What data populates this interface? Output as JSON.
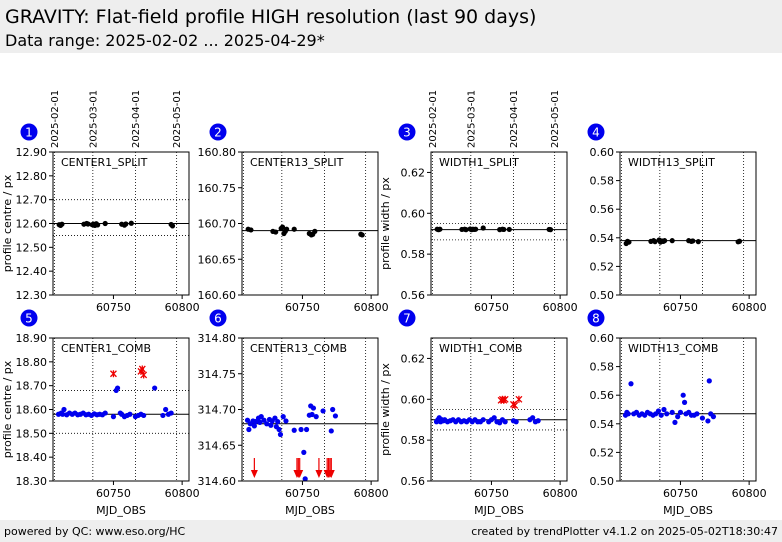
{
  "header": {
    "title": "GRAVITY: Flat-field profile HIGH resolution (last 90 days)",
    "subtitle": "Data range: 2025-02-02 ... 2025-04-29*"
  },
  "footer": {
    "left": "powered by QC: www.eso.org/HC",
    "right": "created by trendPlotter v4.1.2 on 2025-05-02T18:30:47"
  },
  "colors": {
    "normal": "#0000ee",
    "outlier": "#ee0000",
    "refline": "#000000",
    "background": "#eeeeee",
    "badge": "#0000ee"
  },
  "date_axis": {
    "labels": [
      "2025-02-01",
      "2025-03-01",
      "2025-04-01",
      "2025-05-01"
    ],
    "mjd": [
      60707,
      60735,
      60766,
      60796
    ]
  },
  "chart_data": [
    {
      "panel": "1",
      "label": "CENTER1_SPLIT",
      "type": "scatter",
      "color": "black",
      "xlabel": "",
      "ylabel": "profile centre / px",
      "xlim": [
        60706,
        60805
      ],
      "ylim": [
        12.3,
        12.9
      ],
      "xticks": [
        60750,
        60800
      ],
      "yticks": [
        12.3,
        12.4,
        12.5,
        12.6,
        12.7,
        12.8,
        12.9
      ],
      "ref": 12.6,
      "band": [
        12.55,
        12.7
      ],
      "points": [
        [
          60710.5,
          12.595
        ],
        [
          60711.5,
          12.592
        ],
        [
          60712.5,
          12.597
        ],
        [
          60728.5,
          12.597
        ],
        [
          60730.5,
          12.6
        ],
        [
          60731.5,
          12.598
        ],
        [
          60734.5,
          12.595
        ],
        [
          60735.5,
          12.597
        ],
        [
          60736.5,
          12.592
        ],
        [
          60737.5,
          12.599
        ],
        [
          60738.5,
          12.594
        ],
        [
          60744,
          12.6
        ],
        [
          60756,
          12.597
        ],
        [
          60758,
          12.593
        ],
        [
          60759,
          12.598
        ],
        [
          60763,
          12.601
        ],
        [
          60792,
          12.596
        ],
        [
          60793,
          12.59
        ]
      ]
    },
    {
      "panel": "2",
      "label": "CENTER13_SPLIT",
      "type": "scatter",
      "color": "black",
      "xlabel": "",
      "ylabel": "",
      "xlim": [
        60706,
        60805
      ],
      "ylim": [
        160.6,
        160.8
      ],
      "xticks": [
        60750,
        60800
      ],
      "yticks": [
        160.6,
        160.65,
        160.7,
        160.75,
        160.8
      ],
      "ref": 160.69,
      "band": [],
      "points": [
        [
          60710.5,
          160.692
        ],
        [
          60712.5,
          160.691
        ],
        [
          60728.5,
          160.689
        ],
        [
          60730.5,
          160.688
        ],
        [
          60734.5,
          160.693
        ],
        [
          60735.5,
          160.695
        ],
        [
          60736.5,
          160.686
        ],
        [
          60737.5,
          160.689
        ],
        [
          60738.5,
          160.692
        ],
        [
          60744,
          160.692
        ],
        [
          60755,
          160.686
        ],
        [
          60756.5,
          160.684
        ],
        [
          60757.5,
          160.685
        ],
        [
          60759,
          160.689
        ],
        [
          60792.5,
          160.685
        ],
        [
          60793.5,
          160.684
        ]
      ]
    },
    {
      "panel": "3",
      "label": "WIDTH1_SPLIT",
      "type": "scatter",
      "color": "black",
      "xlabel": "",
      "ylabel": "profile width / px",
      "xlim": [
        60706,
        60805
      ],
      "ylim": [
        0.56,
        0.63
      ],
      "xticks": [
        60750,
        60800
      ],
      "yticks": [
        0.56,
        0.58,
        0.6,
        0.62
      ],
      "ref": 0.592,
      "band": [
        0.587,
        0.595
      ],
      "points": [
        [
          60710.5,
          0.5922
        ],
        [
          60711.5,
          0.592
        ],
        [
          60712.5,
          0.5922
        ],
        [
          60728.5,
          0.5921
        ],
        [
          60730.5,
          0.5922
        ],
        [
          60731.5,
          0.592
        ],
        [
          60734.5,
          0.5923
        ],
        [
          60735.5,
          0.592
        ],
        [
          60736.5,
          0.5922
        ],
        [
          60737.5,
          0.5921
        ],
        [
          60738.5,
          0.5922
        ],
        [
          60744,
          0.5928
        ],
        [
          60756,
          0.592
        ],
        [
          60758,
          0.5922
        ],
        [
          60759,
          0.5921
        ],
        [
          60763,
          0.5921
        ],
        [
          60792,
          0.5921
        ],
        [
          60793,
          0.592
        ]
      ]
    },
    {
      "panel": "4",
      "label": "WIDTH13_SPLIT",
      "type": "scatter",
      "color": "black",
      "xlabel": "",
      "ylabel": "",
      "xlim": [
        60706,
        60805
      ],
      "ylim": [
        0.5,
        0.6
      ],
      "xticks": [
        60750,
        60800
      ],
      "yticks": [
        0.5,
        0.52,
        0.54,
        0.56,
        0.58,
        0.6
      ],
      "ref": 0.538,
      "band": [],
      "points": [
        [
          60710.5,
          0.536
        ],
        [
          60711.5,
          0.5375
        ],
        [
          60712.5,
          0.537
        ],
        [
          60728.5,
          0.5375
        ],
        [
          60730.5,
          0.538
        ],
        [
          60731.5,
          0.5373
        ],
        [
          60734.5,
          0.5385
        ],
        [
          60735.5,
          0.537
        ],
        [
          60736.5,
          0.5378
        ],
        [
          60737.5,
          0.5375
        ],
        [
          60738.5,
          0.538
        ],
        [
          60744,
          0.538
        ],
        [
          60756,
          0.538
        ],
        [
          60758,
          0.5375
        ],
        [
          60759,
          0.5378
        ],
        [
          60763,
          0.5373
        ],
        [
          60792,
          0.5372
        ],
        [
          60793,
          0.5376
        ]
      ]
    },
    {
      "panel": "5",
      "label": "CENTER1_COMB",
      "type": "scatter",
      "color": "blue",
      "xlabel": "MJD_OBS",
      "ylabel": "profile centre / px",
      "xlim": [
        60706,
        60805
      ],
      "ylim": [
        18.3,
        18.9
      ],
      "xticks": [
        60750,
        60800
      ],
      "yticks": [
        18.3,
        18.4,
        18.5,
        18.6,
        18.7,
        18.8,
        18.9
      ],
      "ref": 18.58,
      "band": [
        18.5,
        18.68
      ],
      "points": [
        [
          60710,
          18.58
        ],
        [
          60712,
          18.585
        ],
        [
          60713,
          18.58
        ],
        [
          60714,
          18.6
        ],
        [
          60716,
          18.578
        ],
        [
          60718,
          18.585
        ],
        [
          60720,
          18.58
        ],
        [
          60722,
          18.585
        ],
        [
          60724,
          18.578
        ],
        [
          60726,
          18.58
        ],
        [
          60728,
          18.585
        ],
        [
          60730,
          18.578
        ],
        [
          60732,
          18.58
        ],
        [
          60734,
          18.575
        ],
        [
          60736,
          18.582
        ],
        [
          60738,
          18.578
        ],
        [
          60740,
          18.58
        ],
        [
          60742,
          18.578
        ],
        [
          60744,
          18.585
        ],
        [
          60750,
          18.57
        ],
        [
          60752,
          18.68
        ],
        [
          60753,
          18.69
        ],
        [
          60755,
          18.585
        ],
        [
          60756,
          18.58
        ],
        [
          60758,
          18.57
        ],
        [
          60760,
          18.575
        ],
        [
          60762,
          18.58
        ],
        [
          60766,
          18.57
        ],
        [
          60768,
          18.575
        ],
        [
          60770,
          18.58
        ],
        [
          60772,
          18.575
        ],
        [
          60780,
          18.69
        ],
        [
          60786,
          18.575
        ],
        [
          60788,
          18.6
        ],
        [
          60790,
          18.58
        ],
        [
          60792,
          18.585
        ]
      ],
      "outliers": [
        [
          60750,
          18.75
        ],
        [
          60770,
          18.76
        ],
        [
          60771,
          18.77
        ],
        [
          60772,
          18.745
        ]
      ]
    },
    {
      "panel": "6",
      "label": "CENTER13_COMB",
      "type": "scatter",
      "color": "blue",
      "xlabel": "MJD_OBS",
      "ylabel": "",
      "xlim": [
        60706,
        60805
      ],
      "ylim": [
        314.6,
        314.8
      ],
      "xticks": [
        60750,
        60800
      ],
      "yticks": [
        314.6,
        314.65,
        314.7,
        314.75,
        314.8
      ],
      "ref": 314.68,
      "band": [],
      "points": [
        [
          60710,
          314.685
        ],
        [
          60711,
          314.672
        ],
        [
          60712,
          314.68
        ],
        [
          60714,
          314.684
        ],
        [
          60715,
          314.677
        ],
        [
          60716,
          314.683
        ],
        [
          60718,
          314.688
        ],
        [
          60719,
          314.682
        ],
        [
          60720,
          314.69
        ],
        [
          60722,
          314.685
        ],
        [
          60724,
          314.68
        ],
        [
          60726,
          314.686
        ],
        [
          60727,
          314.678
        ],
        [
          60728,
          314.684
        ],
        [
          60730,
          314.688
        ],
        [
          60731,
          314.676
        ],
        [
          60732,
          314.683
        ],
        [
          60733,
          314.672
        ],
        [
          60734,
          314.665
        ],
        [
          60736,
          314.69
        ],
        [
          60738,
          314.684
        ],
        [
          60744,
          314.671
        ],
        [
          60749,
          314.672
        ],
        [
          60751,
          314.64
        ],
        [
          60752,
          314.603
        ],
        [
          60753,
          314.672
        ],
        [
          60755,
          314.692
        ],
        [
          60756,
          314.705
        ],
        [
          60757,
          314.693
        ],
        [
          60758,
          314.702
        ],
        [
          60760,
          314.69
        ],
        [
          60765,
          314.698
        ],
        [
          60771,
          314.67
        ],
        [
          60772,
          314.7
        ],
        [
          60774,
          314.691
        ]
      ],
      "lower_limit_arrows": [
        60715,
        60746,
        60747,
        60748,
        60762,
        60768,
        60769,
        60770,
        60771
      ]
    },
    {
      "panel": "7",
      "label": "WIDTH1_COMB",
      "type": "scatter",
      "color": "blue",
      "xlabel": "MJD_OBS",
      "ylabel": "profile width / px",
      "xlim": [
        60706,
        60805
      ],
      "ylim": [
        0.56,
        0.63
      ],
      "xticks": [
        60750,
        60800
      ],
      "yticks": [
        0.56,
        0.58,
        0.6,
        0.62
      ],
      "ref": 0.59,
      "band": [
        0.585,
        0.595
      ],
      "points": [
        [
          60710,
          0.589
        ],
        [
          60711,
          0.59
        ],
        [
          60712,
          0.591
        ],
        [
          60713,
          0.589
        ],
        [
          60714,
          0.59
        ],
        [
          60715,
          0.5895
        ],
        [
          60716,
          0.59
        ],
        [
          60718,
          0.589
        ],
        [
          60720,
          0.5895
        ],
        [
          60722,
          0.59
        ],
        [
          60724,
          0.589
        ],
        [
          60726,
          0.59
        ],
        [
          60728,
          0.589
        ],
        [
          60730,
          0.5895
        ],
        [
          60732,
          0.589
        ],
        [
          60734,
          0.59
        ],
        [
          60736,
          0.589
        ],
        [
          60738,
          0.59
        ],
        [
          60740,
          0.589
        ],
        [
          60742,
          0.589
        ],
        [
          60744,
          0.59
        ],
        [
          60748,
          0.589
        ],
        [
          60750,
          0.59
        ],
        [
          60752,
          0.591
        ],
        [
          60754,
          0.589
        ],
        [
          60756,
          0.5885
        ],
        [
          60758,
          0.59
        ],
        [
          60760,
          0.589
        ],
        [
          60766,
          0.5895
        ],
        [
          60768,
          0.589
        ],
        [
          60778,
          0.59
        ],
        [
          60780,
          0.591
        ],
        [
          60782,
          0.589
        ],
        [
          60784,
          0.5895
        ]
      ],
      "outliers": [
        [
          60757,
          0.5995
        ],
        [
          60758,
          0.6
        ],
        [
          60759,
          0.5995
        ],
        [
          60760,
          0.6
        ],
        [
          60766,
          0.5975
        ],
        [
          60767,
          0.597
        ],
        [
          60770,
          0.6
        ]
      ]
    },
    {
      "panel": "8",
      "label": "WIDTH13_COMB",
      "type": "scatter",
      "color": "blue",
      "xlabel": "MJD_OBS",
      "ylabel": "",
      "xlim": [
        60706,
        60805
      ],
      "ylim": [
        0.5,
        0.6
      ],
      "xticks": [
        60750,
        60800
      ],
      "yticks": [
        0.5,
        0.52,
        0.54,
        0.56,
        0.58,
        0.6
      ],
      "ref": 0.547,
      "band": [],
      "points": [
        [
          60710,
          0.546
        ],
        [
          60711,
          0.548
        ],
        [
          60712,
          0.547
        ],
        [
          60714,
          0.568
        ],
        [
          60716,
          0.547
        ],
        [
          60718,
          0.548
        ],
        [
          60720,
          0.546
        ],
        [
          60722,
          0.547
        ],
        [
          60724,
          0.546
        ],
        [
          60726,
          0.548
        ],
        [
          60728,
          0.547
        ],
        [
          60730,
          0.546
        ],
        [
          60732,
          0.547
        ],
        [
          60734,
          0.549
        ],
        [
          60736,
          0.546
        ],
        [
          60738,
          0.55
        ],
        [
          60740,
          0.547
        ],
        [
          60744,
          0.548
        ],
        [
          60746,
          0.541
        ],
        [
          60748,
          0.545
        ],
        [
          60750,
          0.548
        ],
        [
          60752,
          0.56
        ],
        [
          60753,
          0.555
        ],
        [
          60754,
          0.547
        ],
        [
          60756,
          0.548
        ],
        [
          60758,
          0.546
        ],
        [
          60760,
          0.546
        ],
        [
          60762,
          0.547
        ],
        [
          60766,
          0.544
        ],
        [
          60770,
          0.542
        ],
        [
          60771,
          0.57
        ],
        [
          60772,
          0.547
        ],
        [
          60774,
          0.545
        ]
      ]
    }
  ]
}
